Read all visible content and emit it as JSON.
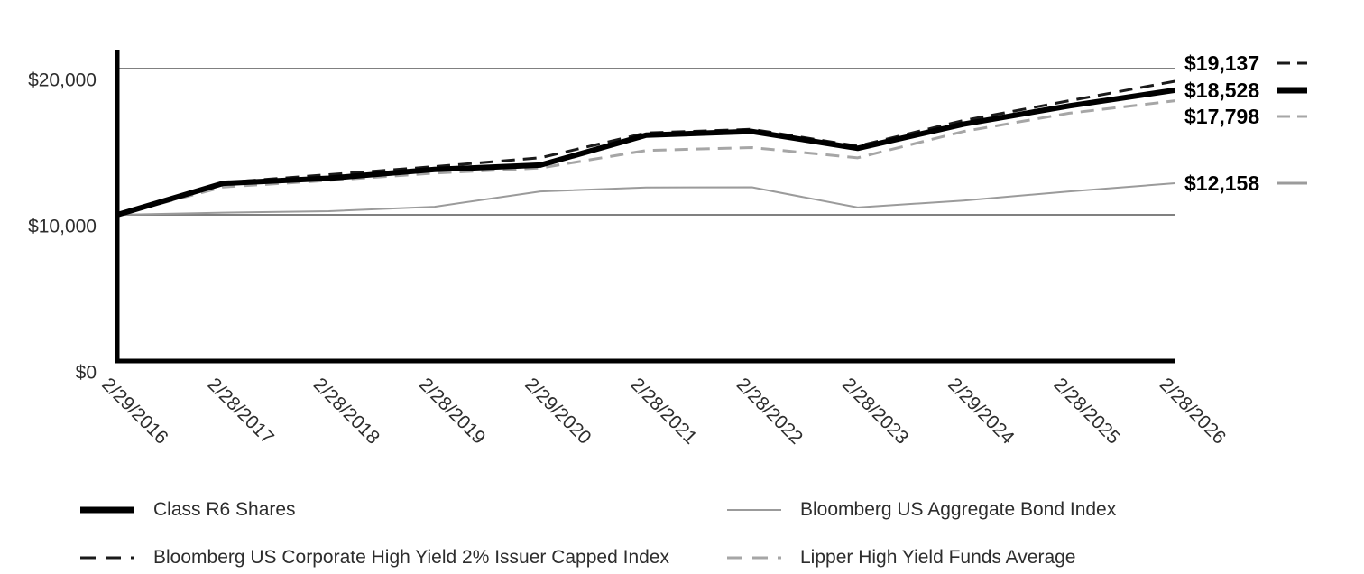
{
  "page": {
    "background": "#ffffff",
    "description_labels": {
      "y_axis_unit": "$",
      "x_axis_unit": "date"
    }
  },
  "chart_data": {
    "type": "line",
    "title": "",
    "xlabel": "",
    "ylabel": "",
    "ylim": [
      0,
      20000
    ],
    "grid": "horizontal",
    "legend_position": "bottom",
    "categories": [
      "2/29/2016",
      "2/28/2017",
      "2/28/2018",
      "2/28/2019",
      "2/29/2020",
      "2/28/2021",
      "2/28/2022",
      "2/28/2023",
      "2/29/2024",
      "2/28/2025",
      "2/28/2026"
    ],
    "y_ticks": [
      {
        "value": 0,
        "label": "$0"
      },
      {
        "value": 10000,
        "label": "$10,000"
      },
      {
        "value": 20000,
        "label": "$20,000"
      }
    ],
    "grid_values": [
      10000,
      20000
    ],
    "series": [
      {
        "id": "class-r6",
        "name": "Class R6 Shares",
        "color": "#000000",
        "width": 6,
        "dash": "",
        "z": 4,
        "values": [
          10000,
          12150,
          12500,
          13100,
          13400,
          15450,
          15700,
          14550,
          16200,
          17450,
          18528
        ],
        "end_label": "$18,528",
        "end_label_y": 100
      },
      {
        "id": "hy-capped",
        "name": "Bloomberg US Corporate High Yield 2% Issuer Capped Index",
        "color": "#1a1a1a",
        "width": 3,
        "dash": "15 9",
        "z": 3,
        "values": [
          10000,
          12200,
          12750,
          13300,
          13900,
          15600,
          15850,
          14700,
          16450,
          17800,
          19137
        ],
        "end_label": "$19,137",
        "end_label_y": 70
      },
      {
        "id": "agg",
        "name": "Bloomberg US Aggregate Bond Index",
        "color": "#9b9b9b",
        "width": 2,
        "dash": "",
        "z": 1,
        "values": [
          10000,
          10150,
          10250,
          10550,
          11600,
          11870,
          11880,
          10500,
          10975,
          11600,
          12158
        ],
        "end_label": "$12,158",
        "end_label_y": 203
      },
      {
        "id": "lipper",
        "name": "Lipper High Yield Funds Average",
        "color": "#a6a6a6",
        "width": 3,
        "dash": "15 9",
        "z": 2,
        "values": [
          10000,
          11900,
          12350,
          12850,
          13200,
          14400,
          14600,
          13900,
          15700,
          16950,
          17798
        ],
        "end_label": "$17,798",
        "end_label_y": 129
      }
    ],
    "legend": {
      "columns": [
        [
          "class-r6",
          "hy-capped"
        ],
        [
          "agg",
          "lipper"
        ]
      ]
    },
    "colors": {
      "grid": "#808080",
      "axis": "#000000",
      "tick_text": "#2d2d2d",
      "end_label_text": "#000000",
      "legend_text": "#2d2d2d"
    }
  }
}
